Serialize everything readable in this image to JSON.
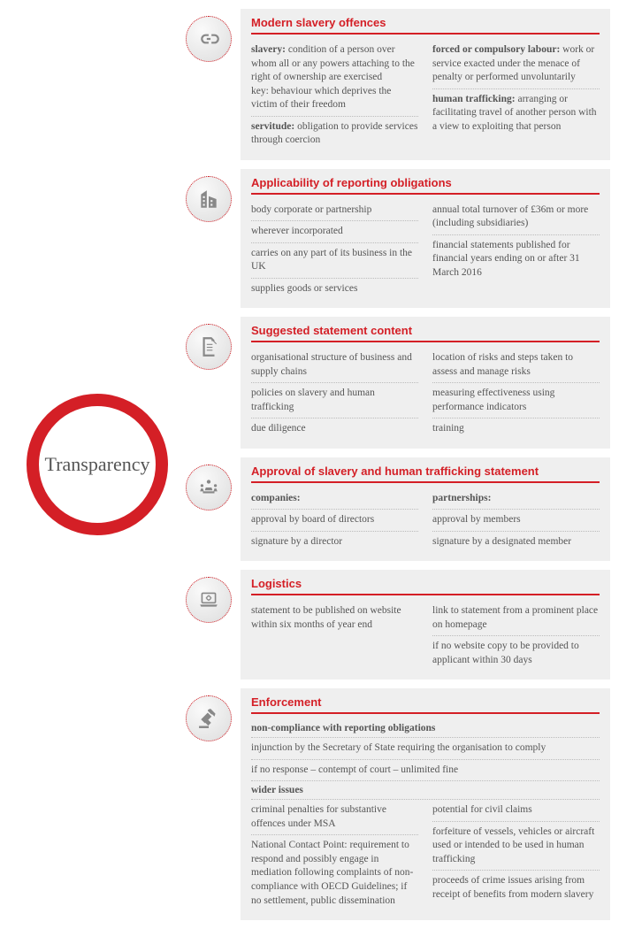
{
  "center": {
    "label": "Transparency"
  },
  "colors": {
    "accent": "#d41f26",
    "panel": "#efefef",
    "text": "#555555"
  },
  "sections": [
    {
      "icon": "link-icon",
      "title": "Modern slavery offences",
      "layout": "two-col",
      "left": [
        {
          "bold": "slavery:",
          "text": " condition of a person over whom all or any powers attaching to the right of ownership are exercised\nkey: behaviour which deprives the victim of their freedom"
        },
        {
          "bold": "servitude:",
          "text": " obligation to provide services through coercion"
        }
      ],
      "right": [
        {
          "bold": "forced or compulsory labour:",
          "text": " work or service exacted under the menace of penalty or performed unvoluntarily"
        },
        {
          "bold": "human trafficking:",
          "text": " arranging or facilitating travel of another person with a view to exploiting that person"
        }
      ]
    },
    {
      "icon": "building-icon",
      "title": "Applicability of reporting obligations",
      "layout": "two-col",
      "left": [
        {
          "text": "body corporate or partnership"
        },
        {
          "text": "wherever incorporated"
        },
        {
          "text": "carries on any part of its business in the UK"
        },
        {
          "text": "supplies goods or services"
        }
      ],
      "right": [
        {
          "text": "annual total turnover of £36m or more (including subsidiaries)"
        },
        {
          "text": "financial statements published for financial years ending on or after 31 March 2016"
        }
      ]
    },
    {
      "icon": "document-icon",
      "title": "Suggested statement content",
      "layout": "two-col",
      "left": [
        {
          "text": "organisational structure of business and supply chains"
        },
        {
          "text": "policies on slavery and human trafficking"
        },
        {
          "text": "due diligence"
        }
      ],
      "right": [
        {
          "text": "location of risks and steps taken to assess and manage risks"
        },
        {
          "text": "measuring effectiveness using performance indicators"
        },
        {
          "text": "training"
        }
      ]
    },
    {
      "icon": "meeting-icon",
      "title": "Approval of slavery and human trafficking statement",
      "layout": "two-col",
      "left": [
        {
          "bold": "companies:",
          "text": ""
        },
        {
          "text": "approval by board of directors"
        },
        {
          "text": "signature by a director"
        }
      ],
      "right": [
        {
          "bold": "partnerships:",
          "text": ""
        },
        {
          "text": "approval by members"
        },
        {
          "text": "signature by a designated member"
        }
      ]
    },
    {
      "icon": "laptop-icon",
      "title": "Logistics",
      "layout": "two-col",
      "left": [
        {
          "text": "statement to be published on website within six months of year end"
        }
      ],
      "right": [
        {
          "text": "link to statement from a prominent place on homepage"
        },
        {
          "text": "if no website copy to be provided to applicant within 30 days"
        }
      ]
    },
    {
      "icon": "gavel-icon",
      "title": "Enforcement",
      "layout": "enforcement",
      "group1_head": "non-compliance with reporting obligations",
      "group1": [
        {
          "text": "injunction by the Secretary of State requiring the organisation to comply"
        },
        {
          "text": "if no response – contempt of court – unlimited fine"
        }
      ],
      "group2_head": "wider issues",
      "group2_left": [
        {
          "text": "criminal penalties for substantive offences under MSA"
        },
        {
          "text": "National Contact Point: requirement to respond and possibly engage in mediation following complaints of non-compliance with OECD Guidelines; if no settlement, public dissemination"
        }
      ],
      "group2_right": [
        {
          "text": "potential for civil claims"
        },
        {
          "text": "forfeiture of vessels, vehicles or aircraft used or intended to be used in human trafficking"
        },
        {
          "text": "proceeds of crime issues arising from receipt of benefits from modern slavery"
        }
      ]
    }
  ]
}
